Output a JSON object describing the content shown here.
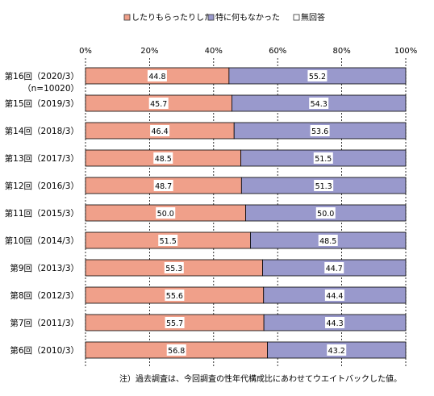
{
  "chart_data": {
    "type": "bar",
    "orientation": "horizontal",
    "stacked": true,
    "title": "",
    "xlabel": "",
    "ylabel": "",
    "xlim": [
      0,
      100
    ],
    "x_ticks": [
      "0%",
      "20%",
      "40%",
      "60%",
      "80%",
      "100%"
    ],
    "legend_position": "top",
    "categories": [
      "第16回（2020/3）\n（n=10020）",
      "第15回（2019/3）",
      "第14回（2018/3）",
      "第13回（2017/3）",
      "第12回（2016/3）",
      "第11回（2015/3）",
      "第10回（2014/3）",
      "第9回（2013/3）",
      "第8回（2012/3）",
      "第7回（2011/3）",
      "第6回（2010/3）"
    ],
    "series": [
      {
        "name": "したりもらったりした",
        "color": "#f0a08a",
        "values": [
          44.8,
          45.7,
          46.4,
          48.5,
          48.7,
          50.0,
          51.5,
          55.3,
          55.6,
          55.7,
          56.8
        ]
      },
      {
        "name": "特に何もなかった",
        "color": "#9999cc",
        "values": [
          55.2,
          54.3,
          53.6,
          51.5,
          51.3,
          50.0,
          48.5,
          44.7,
          44.4,
          44.3,
          43.2
        ]
      },
      {
        "name": "無回答",
        "color": "#ffffff",
        "values": [
          0,
          0,
          0,
          0,
          0,
          0,
          0,
          0,
          0,
          0,
          0
        ]
      }
    ],
    "note": "注）過去調査は、今回調査の性年代構成比にあわせてウエイトバックした値。"
  }
}
